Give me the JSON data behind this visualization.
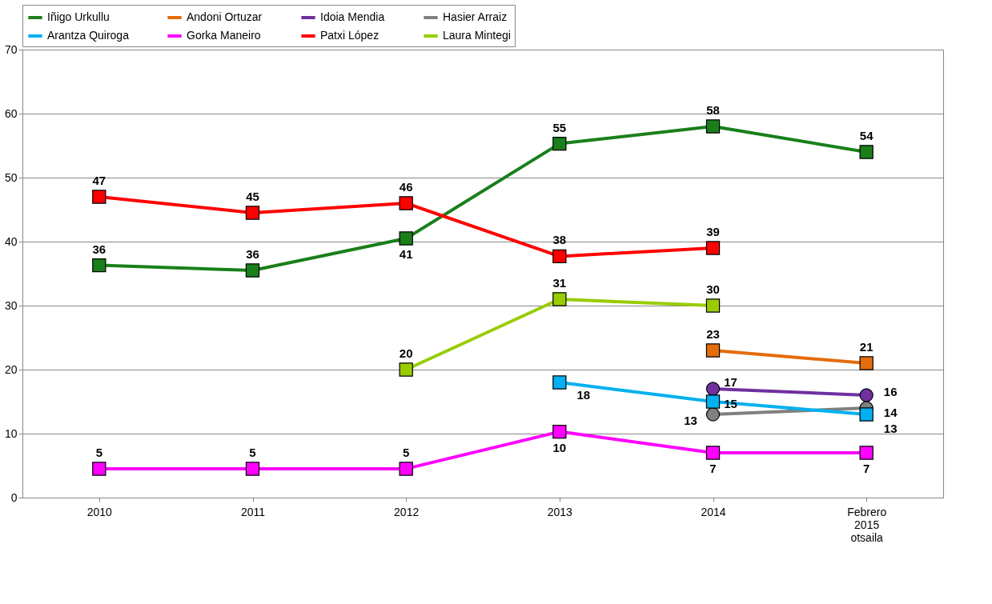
{
  "chart_data": {
    "type": "line",
    "categories": [
      "2010",
      "2011",
      "2012",
      "2013",
      "2014",
      "Febrero\n2015\notsaila"
    ],
    "ylim": [
      0,
      70
    ],
    "yticks": [
      0,
      10,
      20,
      30,
      40,
      50,
      60,
      70
    ],
    "grid": "y",
    "legend": "top",
    "marker": "square",
    "series": [
      {
        "name": "Iñigo Urkullu",
        "color": "#1a7f1a",
        "values": [
          36.3,
          35.5,
          40.5,
          55.3,
          58,
          54
        ],
        "value_labels": [
          "36",
          "36",
          "41",
          "55",
          "58",
          "54"
        ]
      },
      {
        "name": "Andoni Ortuzar",
        "color": "#e46c0a",
        "values": [
          null,
          null,
          null,
          null,
          23,
          21
        ],
        "value_labels": [
          null,
          null,
          null,
          null,
          "23",
          "21"
        ]
      },
      {
        "name": "Idoia Mendia",
        "color": "#7030a0",
        "marker": "circle",
        "values": [
          null,
          null,
          null,
          null,
          17,
          16
        ],
        "value_labels": [
          null,
          null,
          null,
          null,
          "17",
          "16"
        ]
      },
      {
        "name": "Hasier Arraiz",
        "color": "#808080",
        "marker": "circle",
        "values": [
          null,
          null,
          null,
          null,
          13,
          14
        ],
        "value_labels": [
          null,
          null,
          null,
          null,
          "13",
          "14"
        ]
      },
      {
        "name": "Arantza Quiroga",
        "color": "#00b0f0",
        "values": [
          null,
          null,
          null,
          18,
          15,
          13
        ],
        "value_labels": [
          null,
          null,
          null,
          "18",
          "15",
          "13"
        ]
      },
      {
        "name": "Gorka Maneiro",
        "color": "#ff00ff",
        "values": [
          4.5,
          4.5,
          4.5,
          10.3,
          7,
          7
        ],
        "value_labels": [
          "5",
          "5",
          "5",
          "10",
          "7",
          "7"
        ]
      },
      {
        "name": "Patxi López",
        "color": "#ff0000",
        "values": [
          47,
          44.5,
          46,
          37.7,
          39,
          null
        ],
        "value_labels": [
          "47",
          "45",
          "46",
          "38",
          "39",
          null
        ]
      },
      {
        "name": "Laura Mintegi",
        "color": "#99cc00",
        "values": [
          null,
          null,
          20,
          31,
          30,
          null
        ],
        "value_labels": [
          null,
          null,
          "20",
          "31",
          "30",
          null
        ]
      }
    ]
  }
}
